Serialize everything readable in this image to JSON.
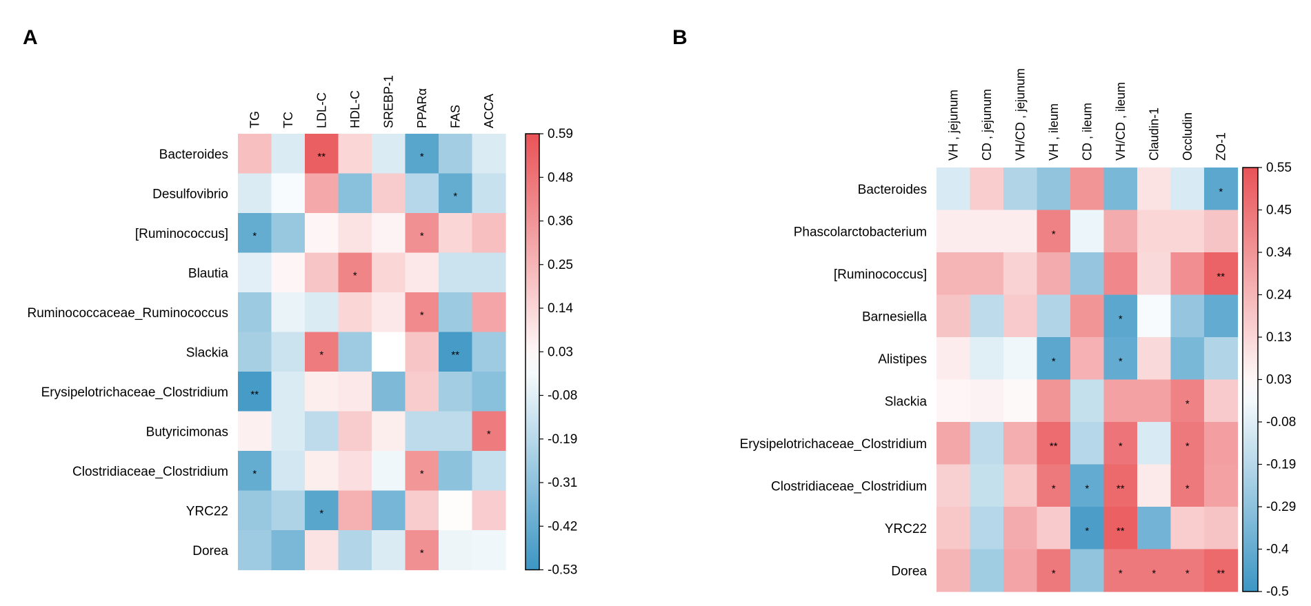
{
  "figure": {
    "panel_a_label": "A",
    "panel_b_label": "B"
  },
  "colors": {
    "negative": "#3c96c4",
    "neutral": "#ffffff",
    "positive": "#e95357"
  },
  "chart_data": [
    {
      "type": "heatmap",
      "panel": "A",
      "title": "",
      "columns": [
        "TG",
        "TC",
        "LDL-C",
        "HDL-C",
        "SREBP-1",
        "PPARα",
        "FAS",
        "ACCA"
      ],
      "rows": [
        "Bacteroides",
        "Desulfovibrio",
        "[Ruminococcus]",
        "Blautia",
        "Ruminococcaceae_Ruminococcus",
        "Slackia",
        "Erysipelotrichaceae_Clostridium",
        "Butyricimonas",
        "Clostridiaceae_Clostridium",
        "YRC22",
        "Dorea"
      ],
      "values": [
        [
          0.22,
          -0.1,
          0.55,
          0.14,
          -0.1,
          -0.45,
          -0.25,
          -0.1
        ],
        [
          -0.1,
          -0.02,
          0.3,
          -0.32,
          0.18,
          -0.2,
          -0.42,
          -0.15
        ],
        [
          -0.42,
          -0.28,
          0.03,
          0.1,
          0.04,
          0.38,
          0.14,
          0.22
        ],
        [
          -0.08,
          0.03,
          0.2,
          0.42,
          0.14,
          0.08,
          -0.14,
          -0.14
        ],
        [
          -0.27,
          -0.06,
          -0.1,
          0.14,
          0.08,
          0.4,
          -0.27,
          0.31
        ],
        [
          -0.24,
          -0.14,
          0.45,
          -0.26,
          0.0,
          0.2,
          -0.5,
          -0.26
        ],
        [
          -0.5,
          -0.1,
          0.06,
          0.08,
          -0.35,
          0.18,
          -0.25,
          -0.32
        ],
        [
          0.05,
          -0.1,
          -0.18,
          0.18,
          0.06,
          -0.18,
          -0.18,
          0.45
        ],
        [
          -0.42,
          -0.12,
          0.06,
          0.11,
          -0.04,
          0.36,
          -0.31,
          -0.16
        ],
        [
          -0.28,
          -0.22,
          -0.45,
          0.27,
          -0.37,
          0.18,
          0.01,
          0.17
        ],
        [
          -0.26,
          -0.36,
          0.1,
          -0.21,
          -0.1,
          0.38,
          -0.05,
          -0.04
        ]
      ],
      "significance": [
        [
          "",
          "",
          "**",
          "",
          "",
          "*",
          "",
          ""
        ],
        [
          "",
          "",
          "",
          "",
          "",
          "",
          "*",
          ""
        ],
        [
          "*",
          "",
          "",
          "",
          "",
          "*",
          "",
          ""
        ],
        [
          "",
          "",
          "",
          "*",
          "",
          "",
          "",
          ""
        ],
        [
          "",
          "",
          "",
          "",
          "",
          "*",
          "",
          ""
        ],
        [
          "",
          "",
          "*",
          "",
          "",
          "",
          "**",
          ""
        ],
        [
          "**",
          "",
          "",
          "",
          "",
          "",
          "",
          ""
        ],
        [
          "",
          "",
          "",
          "",
          "",
          "",
          "",
          "*"
        ],
        [
          "*",
          "",
          "",
          "",
          "",
          "*",
          "",
          ""
        ],
        [
          "",
          "",
          "*",
          "",
          "",
          "",
          "",
          ""
        ],
        [
          "",
          "",
          "",
          "",
          "",
          "*",
          "",
          ""
        ]
      ],
      "colorbar": {
        "min": -0.53,
        "max": 0.59,
        "ticks": [
          "0.59",
          "0.48",
          "0.36",
          "0.25",
          "0.14",
          "0.03",
          "-0.08",
          "-0.19",
          "-0.31",
          "-0.42",
          "-0.53"
        ]
      }
    },
    {
      "type": "heatmap",
      "panel": "B",
      "title": "",
      "columns": [
        "VH , jejunum",
        "CD , jejunum",
        "VH/CD , jejunum",
        "VH , ileum",
        "CD , ileum",
        "VH/CD , ileum",
        "Claudin-1",
        "Occludin",
        "ZO-1"
      ],
      "rows": [
        "Bacteroides",
        "Phascolarctobacterium",
        "[Ruminococcus]",
        "Barnesiella",
        "Alistipes",
        "Slackia",
        "Erysipelotrichaceae_Clostridium",
        "Clostridiaceae_Clostridium",
        "YRC22",
        "Dorea"
      ],
      "values": [
        [
          -0.1,
          0.16,
          -0.2,
          -0.28,
          0.34,
          -0.34,
          0.09,
          -0.1,
          -0.42
        ],
        [
          0.06,
          0.06,
          0.06,
          0.4,
          -0.05,
          0.27,
          0.13,
          0.13,
          0.19
        ],
        [
          0.24,
          0.24,
          0.14,
          0.27,
          -0.27,
          0.38,
          0.12,
          0.36,
          0.5
        ],
        [
          0.19,
          -0.17,
          0.17,
          -0.2,
          0.34,
          -0.42,
          -0.02,
          -0.27,
          -0.4
        ],
        [
          0.06,
          -0.08,
          -0.04,
          -0.42,
          0.25,
          -0.4,
          0.12,
          -0.34,
          -0.2
        ],
        [
          0.03,
          0.04,
          0.02,
          0.34,
          -0.15,
          0.3,
          0.3,
          0.4,
          0.17
        ],
        [
          0.28,
          -0.17,
          0.26,
          0.47,
          -0.19,
          0.44,
          -0.1,
          0.43,
          0.31
        ],
        [
          0.15,
          -0.15,
          0.18,
          0.43,
          -0.4,
          0.48,
          0.07,
          0.43,
          0.3
        ],
        [
          0.18,
          -0.19,
          0.27,
          0.17,
          -0.46,
          0.51,
          -0.36,
          0.16,
          0.19
        ],
        [
          0.24,
          -0.24,
          0.29,
          0.43,
          -0.28,
          0.43,
          0.43,
          0.43,
          0.48
        ]
      ],
      "significance": [
        [
          "",
          "",
          "",
          "",
          "",
          "",
          "",
          "",
          "*"
        ],
        [
          "",
          "",
          "",
          "*",
          "",
          "",
          "",
          "",
          ""
        ],
        [
          "",
          "",
          "",
          "",
          "",
          "",
          "",
          "",
          "**"
        ],
        [
          "",
          "",
          "",
          "",
          "",
          "*",
          "",
          "",
          ""
        ],
        [
          "",
          "",
          "",
          "*",
          "",
          "*",
          "",
          "",
          ""
        ],
        [
          "",
          "",
          "",
          "",
          "",
          "",
          "",
          "*",
          ""
        ],
        [
          "",
          "",
          "",
          "**",
          "",
          "*",
          "",
          "*",
          ""
        ],
        [
          "",
          "",
          "",
          "*",
          "*",
          "**",
          "",
          "*",
          ""
        ],
        [
          "",
          "",
          "",
          "",
          "*",
          "**",
          "",
          "",
          ""
        ],
        [
          "",
          "",
          "",
          "*",
          "",
          "*",
          "*",
          "*",
          "**"
        ]
      ],
      "colorbar": {
        "min": -0.5,
        "max": 0.55,
        "ticks": [
          "0.55",
          "0.45",
          "0.34",
          "0.24",
          "0.13",
          "0.03",
          "-0.08",
          "-0.19",
          "-0.29",
          "-0.4",
          "-0.5"
        ]
      }
    }
  ]
}
